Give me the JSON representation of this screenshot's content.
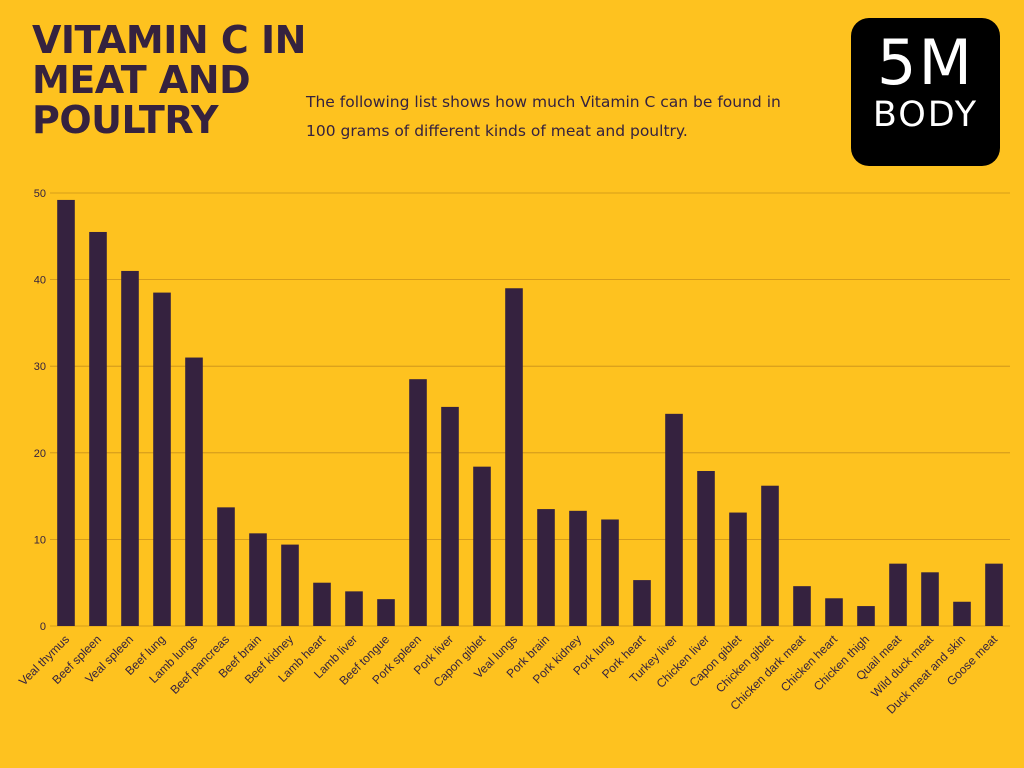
{
  "header": {
    "title_lines": [
      "VITAMIN C IN",
      "MEAT AND",
      "POULTRY"
    ],
    "subtitle": "The following list shows how much Vitamin C can be found in 100 grams of different kinds of meat and poultry."
  },
  "logo": {
    "main": "5M",
    "sub": "BODY"
  },
  "colors": {
    "background": "#fec21f",
    "bar": "#35223f",
    "grid": "#c8901a",
    "text": "#35223f"
  },
  "chart_data": {
    "type": "bar",
    "title": "VITAMIN C IN MEAT AND POULTRY",
    "xlabel": "",
    "ylabel": "",
    "ylim": [
      0,
      50
    ],
    "yticks": [
      0,
      10,
      20,
      30,
      40,
      50
    ],
    "grid": true,
    "categories": [
      "Veal thymus",
      "Beef spleen",
      "Veal spleen",
      "Beef lung",
      "Lamb lungs",
      "Beef pancreas",
      "Beef brain",
      "Beef kidney",
      "Lamb heart",
      "Lamb liver",
      "Beef tongue",
      "Pork spleen",
      "Pork liver",
      "Capon giblet",
      "Veal lungs",
      "Pork brain",
      "Pork kidney",
      "Pork lung",
      "Pork heart",
      "Turkey liver",
      "Chicken liver",
      "Capon giblet",
      "Chicken giblet",
      "Chicken dark meat",
      "Chicken heart",
      "Chicken thigh",
      "Quail meat",
      "Wild duck meat",
      "Duck meat and skin",
      "Goose meat"
    ],
    "values": [
      49.2,
      45.5,
      41.0,
      38.5,
      31.0,
      13.7,
      10.7,
      9.4,
      5.0,
      4.0,
      3.1,
      28.5,
      25.3,
      18.4,
      39.0,
      13.5,
      13.3,
      12.3,
      5.3,
      24.5,
      17.9,
      13.1,
      16.2,
      4.6,
      3.2,
      2.3,
      7.2,
      6.2,
      2.8,
      7.2
    ]
  }
}
